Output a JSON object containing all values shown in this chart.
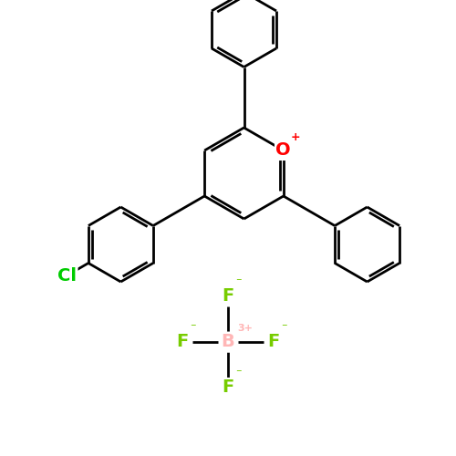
{
  "bg_color": "#ffffff",
  "bond_color": "#000000",
  "bond_lw": 2.0,
  "atom_colors": {
    "O": "#ff0000",
    "Cl": "#00cc00",
    "F": "#77cc00",
    "B": "#ffb6b6",
    "charge_f": "#77cc00",
    "charge_b": "#ffb6b6"
  },
  "font_size_atom": 14,
  "font_size_charge": 9,
  "figsize": [
    5.0,
    5.0
  ],
  "dpi": 100,
  "xlim": [
    0,
    10
  ],
  "ylim": [
    0,
    10
  ]
}
